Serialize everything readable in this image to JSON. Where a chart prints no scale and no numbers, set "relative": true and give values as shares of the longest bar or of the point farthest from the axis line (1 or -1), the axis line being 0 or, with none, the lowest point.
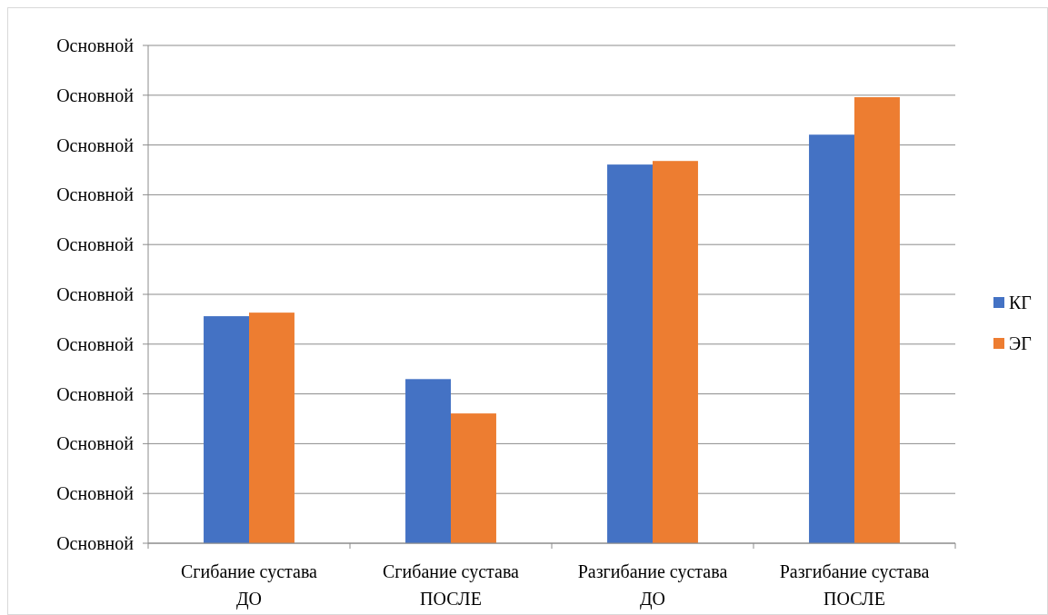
{
  "chart_data": {
    "type": "bar",
    "relative": true,
    "categories": [
      "Сгибание сустава\nДО",
      "Сгибание сустава\nПОСЛЕ",
      "Разгибание сустава\nДО",
      "Разгибание сустава\nПОСЛЕ"
    ],
    "series": [
      {
        "name": "КГ",
        "color": "#4472c4",
        "values": [
          0.509,
          0.368,
          0.849,
          0.916
        ]
      },
      {
        "name": "ЭГ",
        "color": "#ed7d31",
        "values": [
          0.517,
          0.291,
          0.857,
          1
        ]
      }
    ],
    "annotations": [
      "Основной",
      "Основной",
      "Основной",
      "Основной",
      "Основной",
      "Основной",
      "Основной",
      "Основной",
      "Основной",
      "Основной",
      "Основной"
    ],
    "grid": true,
    "legend": "right"
  }
}
